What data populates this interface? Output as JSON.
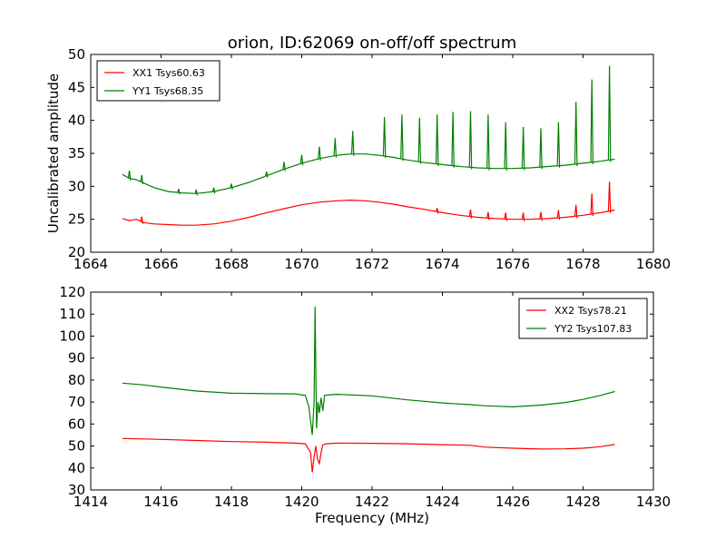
{
  "chart_data": [
    {
      "type": "line",
      "title": "orion, ID:62069 on-off/off spectrum",
      "xlabel": "",
      "ylabel": "Uncalibrated amplitude",
      "xlim": [
        1664,
        1680
      ],
      "ylim": [
        20,
        50
      ],
      "xticks": [
        "1664",
        "1666",
        "1668",
        "1670",
        "1672",
        "1674",
        "1676",
        "1678",
        "1680"
      ],
      "yticks": [
        "20",
        "25",
        "30",
        "35",
        "40",
        "45",
        "50"
      ],
      "legend_position": "upper-left",
      "grid": false,
      "series": [
        {
          "name": "XX1 Tsys60.63",
          "color": "#ff0000",
          "x": [
            1664.9,
            1665.1,
            1665.3,
            1665.5,
            1665.8,
            1666.2,
            1666.6,
            1667.0,
            1667.5,
            1668.0,
            1668.5,
            1669.0,
            1669.5,
            1670.0,
            1670.5,
            1671.0,
            1671.4,
            1671.8,
            1672.2,
            1672.6,
            1673.0,
            1673.5,
            1674.0,
            1674.5,
            1675.0,
            1675.5,
            1676.0,
            1676.5,
            1677.0,
            1677.5,
            1678.0,
            1678.5,
            1678.9
          ],
          "y": [
            25.1,
            24.8,
            25.0,
            24.5,
            24.3,
            24.2,
            24.1,
            24.1,
            24.3,
            24.7,
            25.3,
            26.0,
            26.6,
            27.2,
            27.6,
            27.8,
            27.9,
            27.8,
            27.6,
            27.3,
            26.9,
            26.5,
            26.0,
            25.6,
            25.3,
            25.1,
            25.0,
            25.0,
            25.1,
            25.3,
            25.6,
            26.0,
            26.4
          ]
        },
        {
          "name": "YY1 Tsys68.35",
          "color": "#008000",
          "x": [
            1664.9,
            1665.1,
            1665.3,
            1665.5,
            1665.8,
            1666.2,
            1666.6,
            1667.0,
            1667.5,
            1668.0,
            1668.5,
            1669.0,
            1669.5,
            1670.0,
            1670.5,
            1671.0,
            1671.4,
            1671.8,
            1672.2,
            1672.6,
            1673.0,
            1673.5,
            1674.0,
            1674.5,
            1675.0,
            1675.5,
            1676.0,
            1676.5,
            1677.0,
            1677.5,
            1678.0,
            1678.5,
            1678.9
          ],
          "y": [
            31.8,
            31.2,
            31.0,
            30.5,
            29.8,
            29.2,
            29.0,
            28.9,
            29.2,
            29.8,
            30.6,
            31.6,
            32.6,
            33.5,
            34.2,
            34.7,
            34.9,
            34.9,
            34.7,
            34.4,
            34.0,
            33.6,
            33.3,
            33.0,
            32.8,
            32.7,
            32.7,
            32.8,
            33.0,
            33.2,
            33.5,
            33.8,
            34.1
          ]
        }
      ],
      "spikes": [
        {
          "series": 1,
          "x": [
            1665.1,
            1665.45,
            1666.5,
            1667.0,
            1667.5,
            1668.0,
            1669.0,
            1669.5,
            1670.0,
            1670.5,
            1670.95,
            1671.45,
            1672.35,
            1672.85,
            1673.35,
            1673.85,
            1674.3,
            1674.8,
            1675.3,
            1675.8,
            1676.3,
            1676.8,
            1677.3,
            1677.8,
            1678.25,
            1678.75
          ],
          "peak": [
            32.4,
            31.7,
            29.6,
            29.5,
            29.8,
            30.4,
            32.2,
            33.7,
            34.8,
            36.0,
            37.3,
            38.4,
            40.5,
            40.9,
            40.4,
            40.9,
            41.3,
            41.4,
            40.9,
            39.7,
            39.0,
            38.8,
            39.7,
            42.8,
            46.2,
            48.3
          ]
        },
        {
          "series": 0,
          "x": [
            1665.45,
            1673.85,
            1674.8,
            1675.3,
            1675.8,
            1676.3,
            1676.8,
            1677.3,
            1677.8,
            1678.25,
            1678.75
          ],
          "peak": [
            25.4,
            26.7,
            26.5,
            26.1,
            26.0,
            26.0,
            26.1,
            26.4,
            27.2,
            28.9,
            30.7
          ]
        }
      ]
    },
    {
      "type": "line",
      "title": "",
      "xlabel": "Frequency (MHz)",
      "ylabel": "",
      "xlim": [
        1414,
        1430
      ],
      "ylim": [
        30,
        120
      ],
      "xticks": [
        "1414",
        "1416",
        "1418",
        "1420",
        "1422",
        "1424",
        "1426",
        "1428",
        "1430"
      ],
      "yticks": [
        "30",
        "40",
        "50",
        "60",
        "70",
        "80",
        "90",
        "100",
        "110",
        "120"
      ],
      "legend_position": "upper-right",
      "grid": false,
      "series": [
        {
          "name": "XX2 Tsys78.21",
          "color": "#ff0000",
          "x": [
            1414.9,
            1415.5,
            1416.0,
            1417.0,
            1418.0,
            1419.0,
            1419.8,
            1420.1,
            1420.25,
            1420.3,
            1420.35,
            1420.4,
            1420.45,
            1420.5,
            1420.55,
            1420.6,
            1420.7,
            1421.0,
            1422.0,
            1423.0,
            1424.0,
            1424.8,
            1425.2,
            1426.0,
            1426.8,
            1427.5,
            1428.0,
            1428.5,
            1428.9
          ],
          "y": [
            53.4,
            53.2,
            53.0,
            52.5,
            52.0,
            51.7,
            51.3,
            51.0,
            47.0,
            38.0,
            45.0,
            50.0,
            44.0,
            42.0,
            47.0,
            50.5,
            51.0,
            51.3,
            51.2,
            51.0,
            50.6,
            50.3,
            49.5,
            49.0,
            48.6,
            48.7,
            49.0,
            49.7,
            50.7
          ]
        },
        {
          "name": "YY2 Tsys107.83",
          "color": "#008000",
          "x": [
            1414.9,
            1415.5,
            1416.0,
            1417.0,
            1418.0,
            1419.0,
            1419.8,
            1420.1,
            1420.2,
            1420.3,
            1420.35,
            1420.38,
            1420.42,
            1420.46,
            1420.5,
            1420.55,
            1420.6,
            1420.65,
            1420.8,
            1421.0,
            1422.0,
            1423.0,
            1424.0,
            1424.8,
            1425.2,
            1426.0,
            1426.8,
            1427.5,
            1428.0,
            1428.5,
            1428.9
          ],
          "y": [
            78.6,
            77.8,
            76.8,
            75.0,
            74.0,
            73.8,
            73.7,
            73.0,
            68.0,
            55.0,
            70.0,
            113.5,
            58.0,
            70.0,
            65.0,
            72.0,
            66.0,
            73.0,
            73.3,
            73.5,
            72.8,
            71.0,
            69.6,
            68.8,
            68.3,
            67.8,
            68.6,
            69.8,
            71.2,
            73.0,
            74.8
          ]
        }
      ]
    }
  ]
}
